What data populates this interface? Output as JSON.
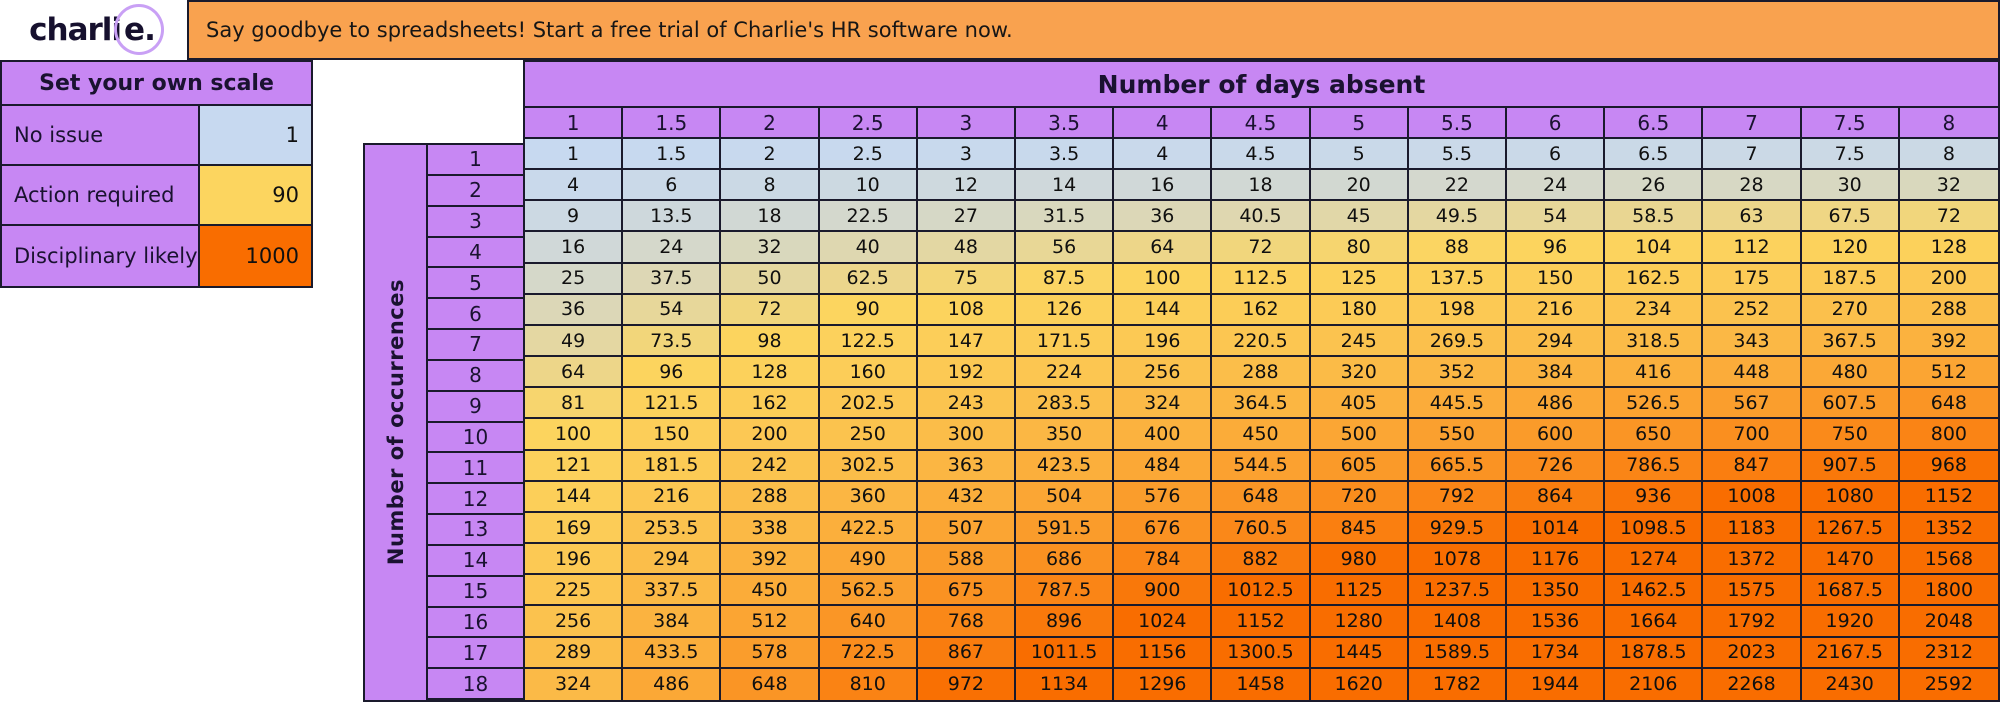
{
  "brand": {
    "logo_text": "charli",
    "logo_circled": "e.",
    "banner_text": "Say goodbye to spreadsheets! Start a free trial of Charlie's HR software now."
  },
  "colors": {
    "purple": "#C787F3",
    "banner_orange": "#F9A24F",
    "border": "#1A1A2C",
    "scale_min_blue": "#C7D9F0",
    "scale_mid_yellow": "#FCD55F",
    "scale_max_orange": "#F96D00"
  },
  "scale_panel": {
    "title": "Set your own scale",
    "rows": [
      {
        "label": "No issue",
        "value": 1
      },
      {
        "label": "Action required",
        "value": 90
      },
      {
        "label": "Disciplinary likely",
        "value": 1000
      }
    ]
  },
  "color_scale": {
    "stops": [
      {
        "value": 1,
        "color": "#C7D9F0"
      },
      {
        "value": 90,
        "color": "#FCD55F"
      },
      {
        "value": 1000,
        "color": "#F96D00"
      }
    ]
  },
  "chart_data": {
    "type": "heatmap",
    "title": "Number of days absent",
    "xlabel": "Number of days absent",
    "ylabel": "Number of occurrences",
    "x": [
      1,
      1.5,
      2,
      2.5,
      3,
      3.5,
      4,
      4.5,
      5,
      5.5,
      6,
      6.5,
      7,
      7.5,
      8
    ],
    "y": [
      1,
      2,
      3,
      4,
      5,
      6,
      7,
      8,
      9,
      10,
      11,
      12,
      13,
      14,
      15,
      16,
      17,
      18
    ],
    "values": [
      [
        1,
        1.5,
        2,
        2.5,
        3,
        3.5,
        4,
        4.5,
        5,
        5.5,
        6,
        6.5,
        7,
        7.5,
        8
      ],
      [
        4,
        6,
        8,
        10,
        12,
        14,
        16,
        18,
        20,
        22,
        24,
        26,
        28,
        30,
        32
      ],
      [
        9,
        13.5,
        18,
        22.5,
        27,
        31.5,
        36,
        40.5,
        45,
        49.5,
        54,
        58.5,
        63,
        67.5,
        72
      ],
      [
        16,
        24,
        32,
        40,
        48,
        56,
        64,
        72,
        80,
        88,
        96,
        104,
        112,
        120,
        128
      ],
      [
        25,
        37.5,
        50,
        62.5,
        75,
        87.5,
        100,
        112.5,
        125,
        137.5,
        150,
        162.5,
        175,
        187.5,
        200
      ],
      [
        36,
        54,
        72,
        90,
        108,
        126,
        144,
        162,
        180,
        198,
        216,
        234,
        252,
        270,
        288
      ],
      [
        49,
        73.5,
        98,
        122.5,
        147,
        171.5,
        196,
        220.5,
        245,
        269.5,
        294,
        318.5,
        343,
        367.5,
        392
      ],
      [
        64,
        96,
        128,
        160,
        192,
        224,
        256,
        288,
        320,
        352,
        384,
        416,
        448,
        480,
        512
      ],
      [
        81,
        121.5,
        162,
        202.5,
        243,
        283.5,
        324,
        364.5,
        405,
        445.5,
        486,
        526.5,
        567,
        607.5,
        648
      ],
      [
        100,
        150,
        200,
        250,
        300,
        350,
        400,
        450,
        500,
        550,
        600,
        650,
        700,
        750,
        800
      ],
      [
        121,
        181.5,
        242,
        302.5,
        363,
        423.5,
        484,
        544.5,
        605,
        665.5,
        726,
        786.5,
        847,
        907.5,
        968
      ],
      [
        144,
        216,
        288,
        360,
        432,
        504,
        576,
        648,
        720,
        792,
        864,
        936,
        1008,
        1080,
        1152
      ],
      [
        169,
        253.5,
        338,
        422.5,
        507,
        591.5,
        676,
        760.5,
        845,
        929.5,
        1014,
        1098.5,
        1183,
        1267.5,
        1352
      ],
      [
        196,
        294,
        392,
        490,
        588,
        686,
        784,
        882,
        980,
        1078,
        1176,
        1274,
        1372,
        1470,
        1568
      ],
      [
        225,
        337.5,
        450,
        562.5,
        675,
        787.5,
        900,
        1012.5,
        1125,
        1237.5,
        1350,
        1462.5,
        1575,
        1687.5,
        1800
      ],
      [
        256,
        384,
        512,
        640,
        768,
        896,
        1024,
        1152,
        1280,
        1408,
        1536,
        1664,
        1792,
        1920,
        2048
      ],
      [
        289,
        433.5,
        578,
        722.5,
        867,
        1011.5,
        1156,
        1300.5,
        1445,
        1589.5,
        1734,
        1878.5,
        2023,
        2167.5,
        2312
      ],
      [
        324,
        486,
        648,
        810,
        972,
        1134,
        1296,
        1458,
        1620,
        1782,
        1944,
        2106,
        2268,
        2430,
        2592
      ]
    ]
  }
}
